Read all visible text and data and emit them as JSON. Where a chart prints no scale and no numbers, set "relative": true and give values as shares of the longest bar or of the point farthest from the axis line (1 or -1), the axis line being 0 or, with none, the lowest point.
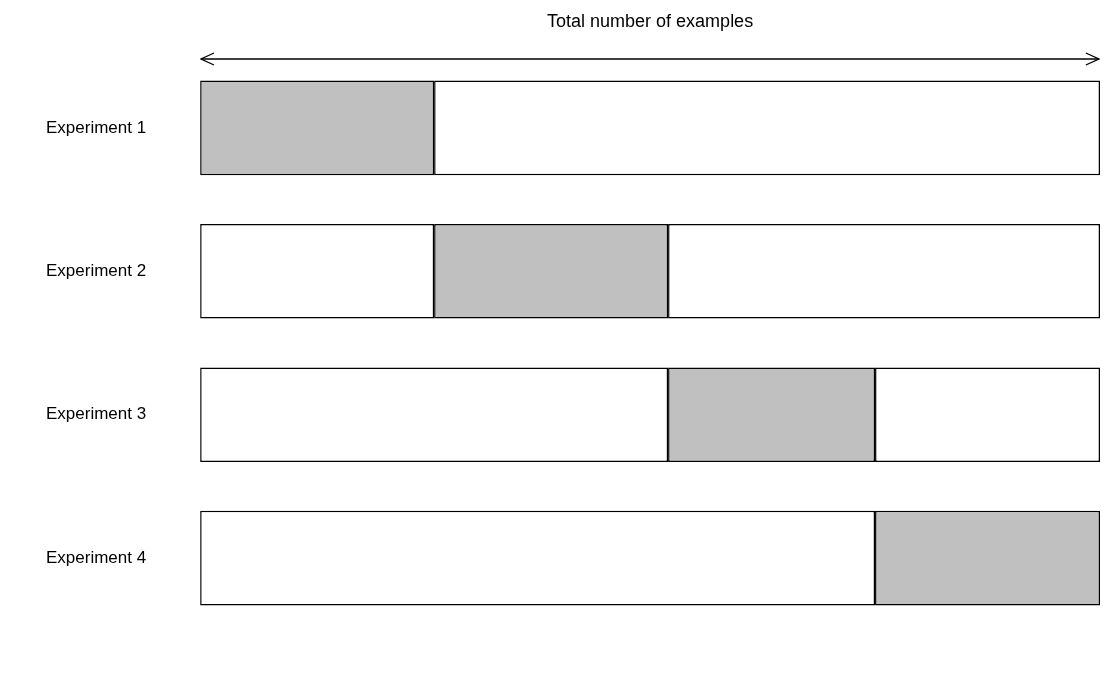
{
  "chart_data": {
    "type": "bar",
    "orientation": "horizontal",
    "stacked": true,
    "relative": true,
    "title": "Total number of examples",
    "categories": [
      "Experiment 1",
      "Experiment 2",
      "Experiment 3",
      "Experiment 4"
    ],
    "series": [
      {
        "color": "#ffffff",
        "values": [
          0,
          0.26,
          0.52,
          0.75
        ]
      },
      {
        "color": "#c0c0c0",
        "values": [
          0.26,
          0.26,
          0.23,
          0.25
        ]
      },
      {
        "color": "#ffffff",
        "values": [
          0.74,
          0.48,
          0.25,
          0
        ]
      }
    ],
    "legend": false
  }
}
